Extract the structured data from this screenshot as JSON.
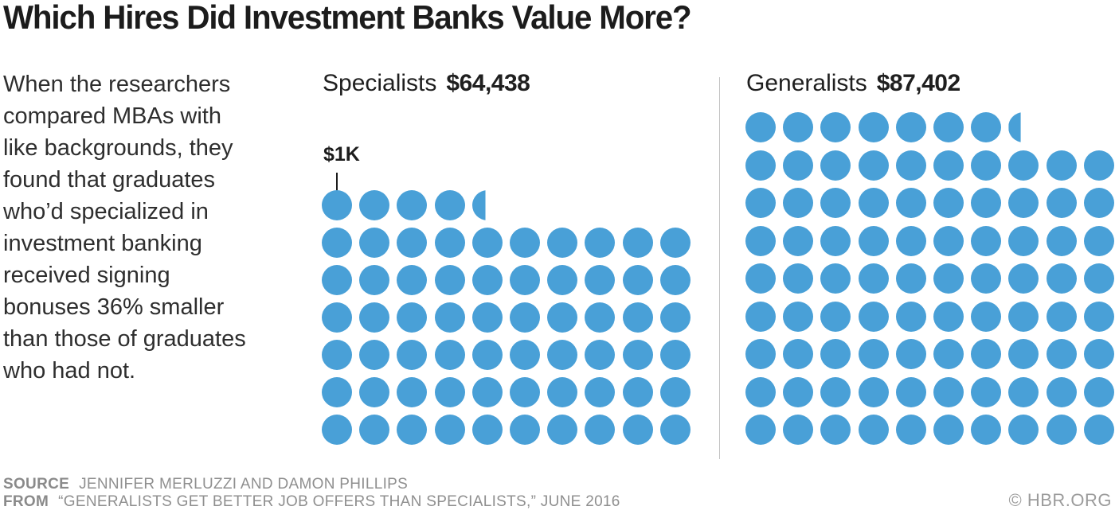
{
  "title": "Which Hires Did Investment Banks Value More?",
  "description": "When the researchers\ncompared MBAs with\nlike backgrounds, they\nfound that graduates\nwho’d specialized in\ninvestment banking\nreceived signing\nbonuses 36% smaller\nthan those of graduates\nwho had not.",
  "footer": {
    "source_label": "SOURCE",
    "source_text": "JENNIFER MERLUZZI AND DAMON PHILLIPS",
    "from_label": "FROM",
    "from_text": "“GENERALISTS GET BETTER JOB OFFERS THAN SPECIALISTS,” JUNE 2016",
    "credit": "© HBR.ORG"
  },
  "colors": {
    "dot": "#49a0d7",
    "title": "#1c1c1c",
    "body_text": "#2e2e2e",
    "footer_text": "#8f8f8f",
    "divider": "#c2c2c2"
  },
  "chart_data": {
    "type": "pictogram",
    "title": "Which Hires Did Investment Banks Value More?",
    "unit_value": 1000,
    "unit_label": "$1K",
    "row_capacity": 10,
    "legend_position": "none",
    "grid": false,
    "series": [
      {
        "name": "Specialists",
        "value": 64438,
        "value_label": "$64,438",
        "dots_total": 64.44,
        "rows": [
          {
            "full": 4,
            "partial": 0.44
          },
          {
            "full": 10,
            "partial": 0
          },
          {
            "full": 10,
            "partial": 0
          },
          {
            "full": 10,
            "partial": 0
          },
          {
            "full": 10,
            "partial": 0
          },
          {
            "full": 10,
            "partial": 0
          },
          {
            "full": 10,
            "partial": 0
          }
        ]
      },
      {
        "name": "Generalists",
        "value": 87402,
        "value_label": "$87,402",
        "dots_total": 87.4,
        "rows": [
          {
            "full": 7,
            "partial": 0.4
          },
          {
            "full": 10,
            "partial": 0
          },
          {
            "full": 10,
            "partial": 0
          },
          {
            "full": 10,
            "partial": 0
          },
          {
            "full": 10,
            "partial": 0
          },
          {
            "full": 10,
            "partial": 0
          },
          {
            "full": 10,
            "partial": 0
          },
          {
            "full": 10,
            "partial": 0
          },
          {
            "full": 10,
            "partial": 0
          }
        ]
      }
    ]
  }
}
